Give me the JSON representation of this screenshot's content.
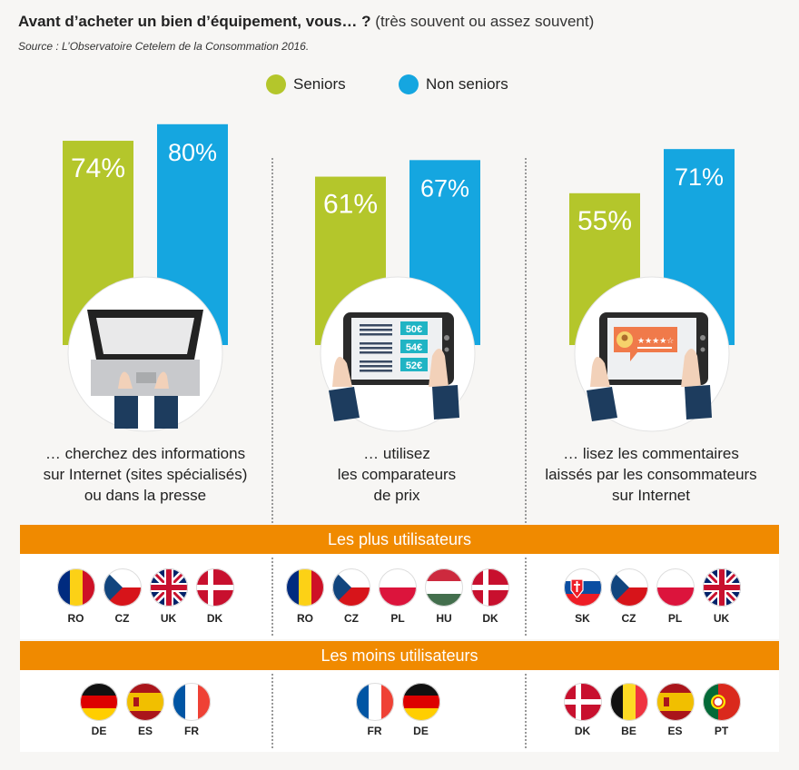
{
  "title": {
    "bold": "Avant d’acheter un bien d’équipement, vous… ?",
    "normal": "(très souvent ou assez souvent)"
  },
  "source": "Source : L’Observatoire Cetelem de la Consommation 2016.",
  "colors": {
    "seniors": "#b4c62b",
    "non_seniors": "#15a6e0",
    "band": "#f08a00"
  },
  "chart_data": {
    "type": "bar",
    "categories": [
      "… cherchez des informations sur Internet (sites spécialisés) ou dans la presse",
      "… utilisez les comparateurs de prix",
      "… lisez les commentaires laissés par les consommateurs sur Internet"
    ],
    "series": [
      {
        "name": "Seniors",
        "values": [
          74,
          61,
          55
        ],
        "labels": [
          "74%",
          "61%",
          "55%"
        ]
      },
      {
        "name": "Non seniors",
        "values": [
          80,
          67,
          71
        ],
        "labels": [
          "80%",
          "67%",
          "71%"
        ]
      }
    ],
    "ylim": [
      0,
      100
    ],
    "legend_position": "top-center"
  },
  "legend": {
    "seniors": "Seniors",
    "non_seniors": "Non seniors"
  },
  "panels": [
    {
      "caption_lines": [
        "… cherchez des informations",
        "sur Internet (sites spécialisés)",
        "ou dans la presse"
      ],
      "icon": "laptop-icon",
      "most": [
        "RO",
        "CZ",
        "UK",
        "DK"
      ],
      "least": [
        "DE",
        "ES",
        "FR"
      ]
    },
    {
      "caption_lines": [
        "… utilisez",
        "les comparateurs",
        "de prix"
      ],
      "icon": "tablet-price-comparison-icon",
      "prices": [
        "50€",
        "54€",
        "52€"
      ],
      "most": [
        "RO",
        "CZ",
        "PL",
        "HU",
        "DK"
      ],
      "least": [
        "FR",
        "DE"
      ]
    },
    {
      "caption_lines": [
        "… lisez les commentaires",
        "laissés par les consommateurs",
        "sur Internet"
      ],
      "icon": "tablet-review-icon",
      "rating": "★★★★☆",
      "most": [
        "SK",
        "CZ",
        "PL",
        "UK"
      ],
      "least": [
        "DK",
        "BE",
        "ES",
        "PT"
      ]
    }
  ],
  "bands": {
    "most": "Les plus utilisateurs",
    "least": "Les moins utilisateurs"
  }
}
